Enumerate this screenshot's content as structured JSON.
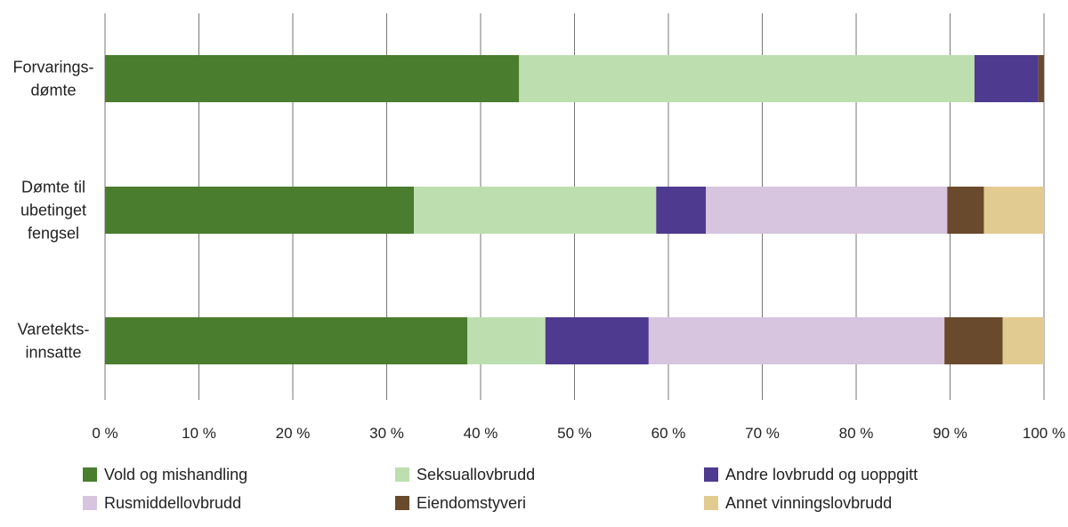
{
  "chart_data": {
    "type": "bar",
    "orientation": "horizontal",
    "stacked": true,
    "categories": [
      [
        "Forvarings-",
        "dømte"
      ],
      [
        "Dømte til",
        "ubetinget",
        "fengsel"
      ],
      [
        "Varetekts-",
        "innsatte"
      ]
    ],
    "xlim": [
      0,
      100
    ],
    "xticks": [
      "0 %",
      "10 %",
      "20 %",
      "30 %",
      "40 %",
      "50 %",
      "60 %",
      "70 %",
      "80 %",
      "90 %",
      "100 %"
    ],
    "grid": "vertical",
    "legend_position": "bottom",
    "series": [
      {
        "name": "Vold og mishandling",
        "color": "#4a7d2e",
        "values": [
          44.1,
          32.9,
          38.6
        ]
      },
      {
        "name": "Seksuallovbrudd",
        "color": "#bddfb0",
        "values": [
          48.5,
          25.8,
          8.3
        ]
      },
      {
        "name": "Andre lovbrudd og uoppgitt",
        "color": "#4e3a8f",
        "values": [
          6.8,
          5.3,
          11.0
        ]
      },
      {
        "name": "Rusmiddellovbrudd",
        "color": "#d7c4df",
        "values": [
          0,
          25.7,
          31.5
        ]
      },
      {
        "name": "Eiendomstyveri",
        "color": "#6a4a2c",
        "values": [
          0.6,
          3.9,
          6.2
        ]
      },
      {
        "name": "Annet vinningslovbrudd",
        "color": "#e2cb91",
        "values": [
          0,
          6.4,
          4.4
        ]
      }
    ]
  }
}
